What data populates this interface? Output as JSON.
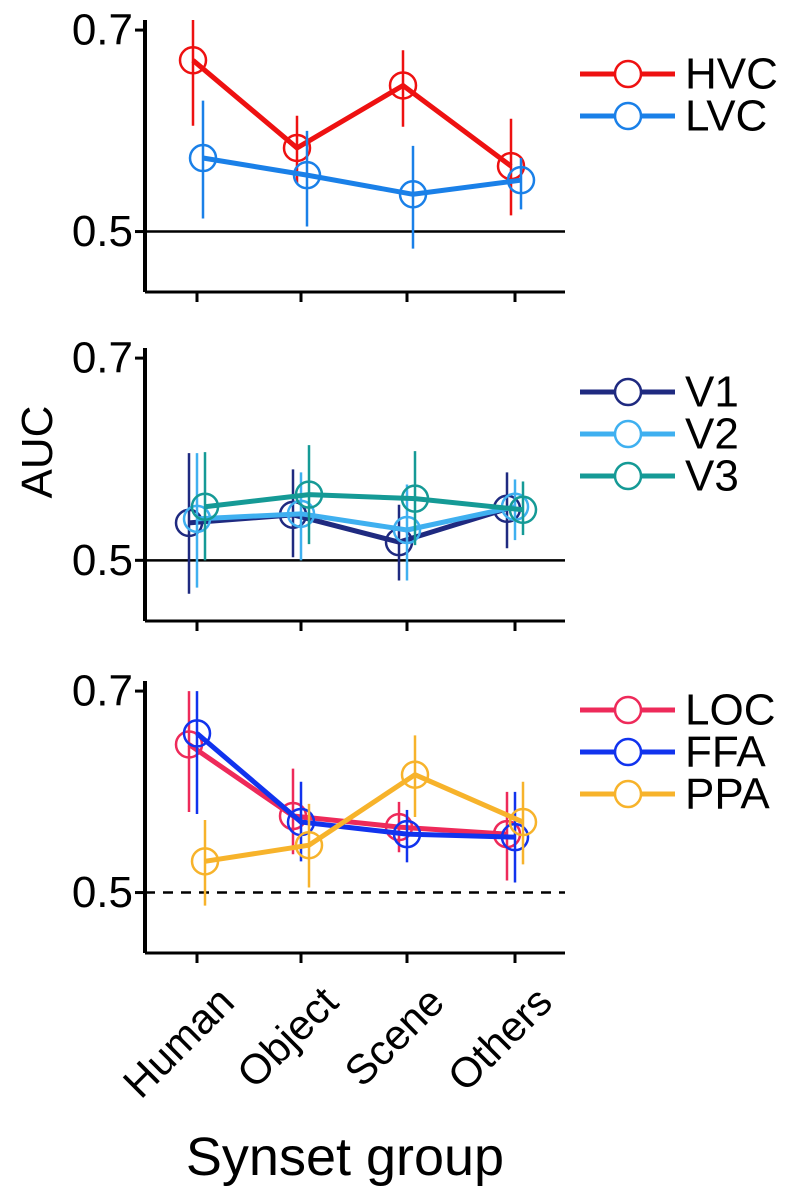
{
  "figure": {
    "ylabel": "AUC",
    "xlabel": "Synset group"
  },
  "chart_data": [
    {
      "type": "line",
      "categories": [
        "Human",
        "Object",
        "Scene",
        "Others"
      ],
      "ylim": [
        0.44,
        0.71
      ],
      "yticks": [
        "0.5",
        "0.7"
      ],
      "reference_line": {
        "value": 0.5,
        "style": "solid"
      },
      "legend_position": "right",
      "series": [
        {
          "name": "HVC",
          "color": "#ee1111",
          "values": [
            0.67,
            0.583,
            0.645,
            0.565
          ],
          "err_low": [
            0.605,
            0.548,
            0.604,
            0.516
          ],
          "err_high": [
            0.71,
            0.615,
            0.68,
            0.612
          ]
        },
        {
          "name": "LVC",
          "color": "#1a80e8",
          "values": [
            0.573,
            0.556,
            0.537,
            0.551
          ],
          "err_low": [
            0.513,
            0.505,
            0.483,
            0.522
          ],
          "err_high": [
            0.63,
            0.6,
            0.585,
            0.573
          ]
        }
      ]
    },
    {
      "type": "line",
      "categories": [
        "Human",
        "Object",
        "Scene",
        "Others"
      ],
      "ylim": [
        0.44,
        0.71
      ],
      "yticks": [
        "0.5",
        "0.7"
      ],
      "reference_line": {
        "value": 0.5,
        "style": "solid"
      },
      "legend_position": "right",
      "series": [
        {
          "name": "V1",
          "color": "#1f2a80",
          "values": [
            0.537,
            0.545,
            0.518,
            0.551
          ],
          "err_low": [
            0.467,
            0.503,
            0.48,
            0.512
          ],
          "err_high": [
            0.606,
            0.59,
            0.555,
            0.587
          ]
        },
        {
          "name": "V2",
          "color": "#3fb0f0",
          "values": [
            0.541,
            0.546,
            0.53,
            0.553
          ],
          "err_low": [
            0.473,
            0.5,
            0.48,
            0.52
          ],
          "err_high": [
            0.606,
            0.587,
            0.575,
            0.58
          ]
        },
        {
          "name": "V3",
          "color": "#159a96",
          "values": [
            0.553,
            0.565,
            0.561,
            0.55
          ],
          "err_low": [
            0.5,
            0.516,
            0.515,
            0.525
          ],
          "err_high": [
            0.607,
            0.614,
            0.608,
            0.578
          ]
        }
      ]
    },
    {
      "type": "line",
      "categories": [
        "Human",
        "Object",
        "Scene",
        "Others"
      ],
      "ylim": [
        0.44,
        0.71
      ],
      "yticks": [
        "0.5",
        "0.7"
      ],
      "reference_line": {
        "value": 0.5,
        "style": "dashed"
      },
      "legend_position": "right",
      "series": [
        {
          "name": "LOC",
          "color": "#ee2a5a",
          "values": [
            0.647,
            0.576,
            0.565,
            0.558
          ],
          "err_low": [
            0.58,
            0.538,
            0.54,
            0.512
          ],
          "err_high": [
            0.7,
            0.623,
            0.59,
            0.6
          ]
        },
        {
          "name": "FFA",
          "color": "#1133ee",
          "values": [
            0.658,
            0.57,
            0.558,
            0.555
          ],
          "err_low": [
            0.578,
            0.531,
            0.53,
            0.51
          ],
          "err_high": [
            0.7,
            0.61,
            0.582,
            0.6
          ]
        },
        {
          "name": "PPA",
          "color": "#f7b32b",
          "values": [
            0.531,
            0.547,
            0.617,
            0.57
          ],
          "err_low": [
            0.487,
            0.505,
            0.575,
            0.528
          ],
          "err_high": [
            0.572,
            0.588,
            0.656,
            0.61
          ]
        }
      ]
    }
  ]
}
